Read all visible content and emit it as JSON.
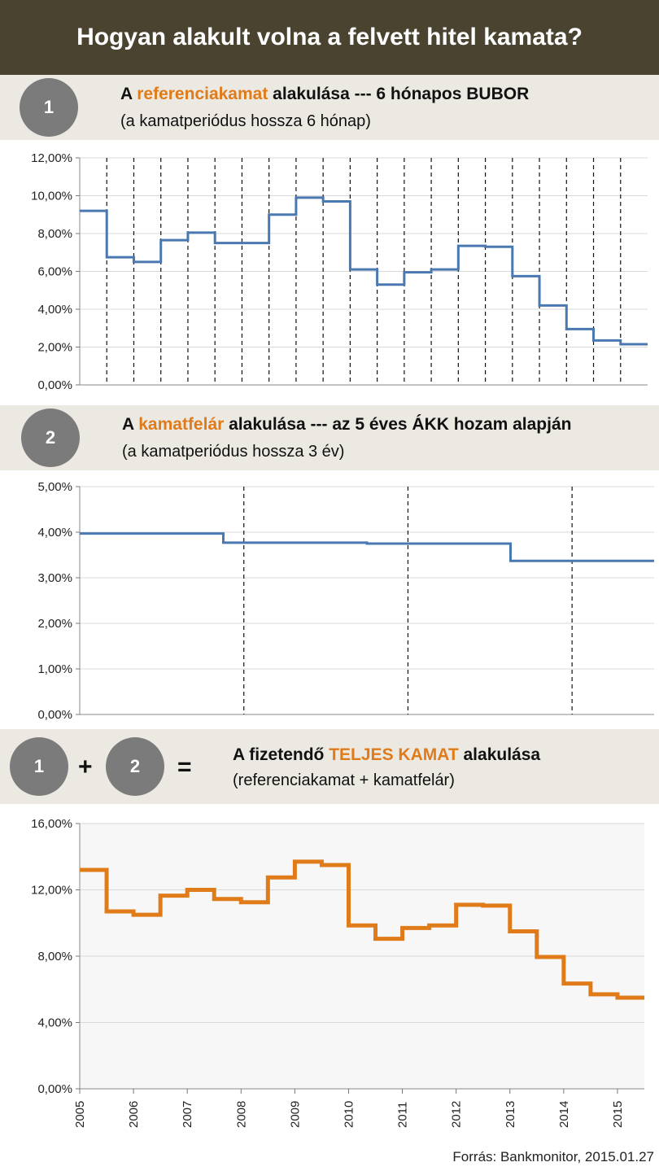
{
  "title": "Hogyan alakult volna a felvett hitel kamata?",
  "section1": {
    "number": "1",
    "title_prefix": "A ",
    "title_highlight": "referenciakamat",
    "title_suffix": " alakulása --- 6 hónapos BUBOR",
    "subtitle": "(a kamatperiódus hossza 6 hónap)"
  },
  "section2": {
    "number": "2",
    "title_prefix": "A ",
    "title_highlight": "kamatfelár",
    "title_suffix": " alakulása --- az 5 éves ÁKK hozam alapján",
    "subtitle": "(a kamatperiódus hossza 3 év)"
  },
  "section3": {
    "circle1": "1",
    "plus": "+",
    "circle2": "2",
    "equals": "=",
    "title_prefix": "A fizetendő ",
    "title_highlight": "TELJES KAMAT",
    "title_suffix": " alakulása",
    "subtitle": "(referenciakamat + kamatfelár)"
  },
  "footer": "Forrás: Bankmonitor, 2015.01.27",
  "colors": {
    "accent": "#e07b1a",
    "blue": "#4a78b0",
    "header_bg": "#4a4330",
    "band_bg": "#ece9e2"
  },
  "chart_data": [
    {
      "type": "line",
      "step": true,
      "title": "",
      "x_start": "2005",
      "x_end": "2015.5",
      "y": [
        9.2,
        6.75,
        6.5,
        7.65,
        8.05,
        7.5,
        7.5,
        9.0,
        9.9,
        9.7,
        6.1,
        5.3,
        5.95,
        6.1,
        7.35,
        7.3,
        5.75,
        4.2,
        2.95,
        2.35,
        2.15
      ],
      "ylim": [
        0,
        12
      ],
      "yticks": [
        "0,00%",
        "2,00%",
        "4,00%",
        "6,00%",
        "8,00%",
        "10,00%",
        "12,00%"
      ],
      "period_boundaries": [
        "2005.5",
        "2006.0",
        "2006.5",
        "2007.0",
        "2007.5",
        "2008.0",
        "2008.5",
        "2009.0",
        "2009.5",
        "2010.0",
        "2010.5",
        "2011.0",
        "2011.5",
        "2012.0",
        "2012.5",
        "2013.0",
        "2013.5",
        "2014.0",
        "2014.5",
        "2015.0"
      ],
      "grid": true,
      "line_color": "#4a78b0"
    },
    {
      "type": "line",
      "step": true,
      "title": "",
      "x_start": "2005",
      "x_end": "2015.5",
      "y": [
        3.97,
        3.77,
        3.75,
        3.37
      ],
      "ylim": [
        0,
        5
      ],
      "yticks": [
        "0,00%",
        "1,00%",
        "2,00%",
        "3,00%",
        "4,00%",
        "5,00%"
      ],
      "period_boundaries": [
        "2008.0",
        "2011.0",
        "2014.0"
      ],
      "grid": true,
      "line_color": "#4a78b0"
    },
    {
      "type": "line",
      "step": true,
      "title": "",
      "x_start": "2005",
      "x_end": "2015.5",
      "y": [
        13.2,
        10.7,
        10.5,
        11.65,
        12.0,
        11.45,
        11.25,
        12.75,
        13.7,
        13.5,
        9.85,
        9.05,
        9.7,
        9.85,
        11.1,
        11.05,
        9.5,
        7.95,
        6.35,
        5.7,
        5.5
      ],
      "ylim": [
        0,
        16
      ],
      "yticks": [
        "0,00%",
        "4,00%",
        "8,00%",
        "12,00%",
        "16,00%"
      ],
      "xticks": [
        "2005",
        "2006",
        "2007",
        "2008",
        "2009",
        "2010",
        "2011",
        "2012",
        "2013",
        "2014",
        "2015"
      ],
      "grid": true,
      "line_color": "#e07b1a"
    }
  ]
}
